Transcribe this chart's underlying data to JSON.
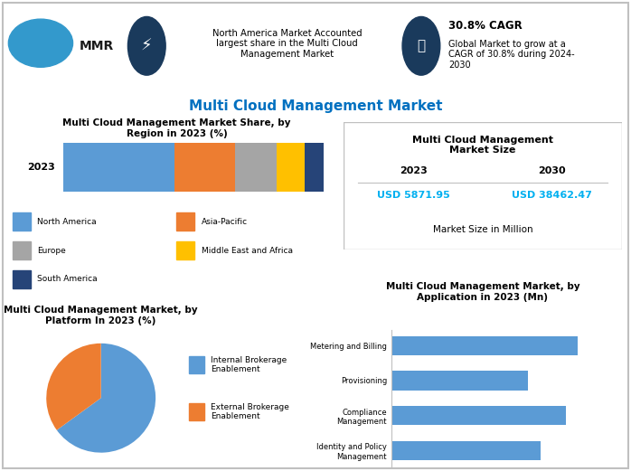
{
  "main_title": "Multi Cloud Management Market",
  "header_text1": "North America Market Accounted\nlargest share in the Multi Cloud\nManagement Market",
  "header_cagr_bold": "30.8% CAGR",
  "header_cagr_rest": "Global Market to grow at a\nCAGR of 30.8% during 2024-\n2030",
  "bar_title": "Multi Cloud Management Market Share, by\nRegion in 2023 (%)",
  "bar_label": "2023",
  "bar_segments": [
    40,
    22,
    15,
    10,
    7
  ],
  "bar_colors": [
    "#5b9bd5",
    "#ed7d31",
    "#a5a5a5",
    "#ffc000",
    "#264478"
  ],
  "bar_legend": [
    "North America",
    "Asia-Pacific",
    "Europe",
    "Middle East and Africa",
    "South America"
  ],
  "pie_title": "Multi Cloud Management Market, by\nPlatform In 2023 (%)",
  "pie_values": [
    65,
    35
  ],
  "pie_colors": [
    "#5b9bd5",
    "#ed7d31"
  ],
  "pie_legend": [
    "Internal Brokerage\nEnablement",
    "External Brokerage\nEnablement"
  ],
  "market_size_title": "Multi Cloud Management\nMarket Size",
  "market_size_year1": "2023",
  "market_size_year2": "2030",
  "market_size_val1": "USD 5871.95",
  "market_size_val2": "USD 38462.47",
  "market_size_note": "Market Size in Million",
  "app_title": "Multi Cloud Management Market, by\nApplication in 2023 (Mn)",
  "app_categories": [
    "Identity and Policy\nManagement",
    "Compliance\nManagement",
    "Provisioning",
    "Metering and Billing"
  ],
  "app_values": [
    1200,
    1400,
    1100,
    1500
  ],
  "app_color": "#5b9bd5",
  "bg_color": "#ffffff",
  "title_color": "#0070c0",
  "border_color": "#c0c0c0",
  "cyan_color": "#00b0f0",
  "header_bg": "#f2f2f2",
  "icon_dark": "#1a3a5c"
}
